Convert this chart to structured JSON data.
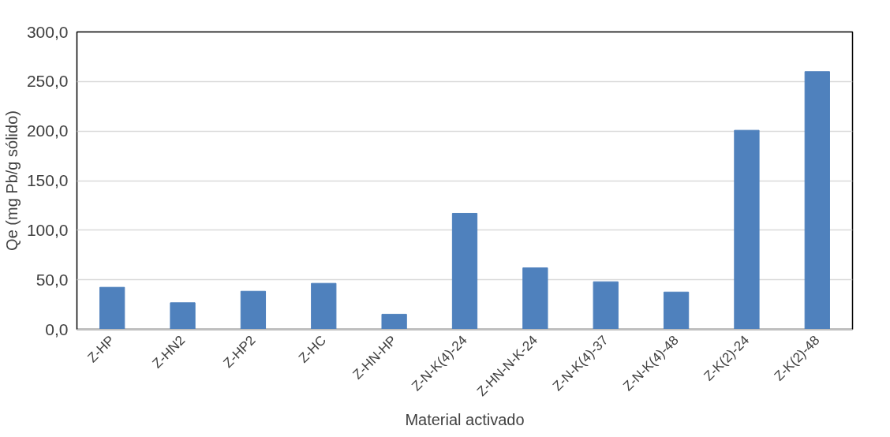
{
  "chart_data": {
    "type": "bar",
    "xlabel": "Material activado",
    "ylabel": "Qe (mg Pb/g sólido)",
    "categories": [
      "Z-HP",
      "Z-HN2",
      "Z-HP2",
      "Z-HC",
      "Z-HN-HP",
      "Z-N-K(4)-24",
      "Z-HN-N-K-24",
      "Z-N-K(4)-37",
      "Z-N-K(4)-48",
      "Z-K(2)-24",
      "Z-K(2)-48"
    ],
    "values": [
      42.4,
      26.8,
      38.4,
      46.4,
      15.2,
      117,
      62,
      48,
      37.6,
      200.8,
      260
    ],
    "color": "#4f81bd",
    "ylim": [
      0,
      300
    ],
    "yticks": [
      {
        "value": 0,
        "label": "0,0"
      },
      {
        "value": 50,
        "label": "50,0"
      },
      {
        "value": 100,
        "label": "100,0"
      },
      {
        "value": 150,
        "label": "150,0"
      },
      {
        "value": 200,
        "label": "200,0"
      },
      {
        "value": 250,
        "label": "250,0"
      },
      {
        "value": 300,
        "label": "300,0"
      }
    ],
    "grid": "y"
  }
}
